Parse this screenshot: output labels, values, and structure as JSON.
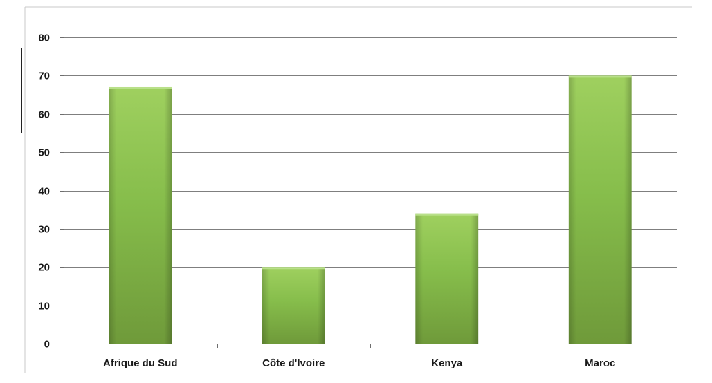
{
  "chart_data": {
    "type": "bar",
    "title": "",
    "xlabel": "",
    "ylabel": "",
    "categories": [
      "Afrique du Sud",
      "Côte d'Ivoire",
      "Kenya",
      "Maroc"
    ],
    "values": [
      67,
      20,
      34,
      70
    ],
    "ylim": [
      0,
      80
    ],
    "yticks": [
      "0",
      "10",
      "20",
      "30",
      "40",
      "50",
      "60",
      "70",
      "80"
    ],
    "grid": true,
    "legend": "none",
    "bar_color": "#8cc152"
  }
}
